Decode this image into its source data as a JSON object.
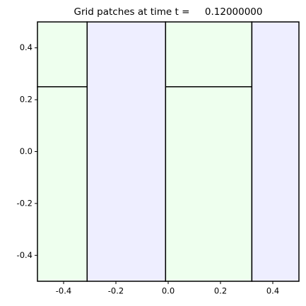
{
  "chart_data": {
    "type": "patches",
    "title": "Grid patches at time t =     0.12000000",
    "xlim": [
      -0.5,
      0.5
    ],
    "ylim": [
      -0.5,
      0.5
    ],
    "xticks": [
      -0.4,
      -0.2,
      {
        "value": 0,
        "label": "0.0"
      },
      0.2,
      0.4
    ],
    "yticks": [
      -0.4,
      -0.2,
      {
        "value": 0,
        "label": "0.0"
      },
      0.2,
      0.4
    ],
    "patches": [
      {
        "x": [
          -0.5,
          -0.31
        ],
        "y": [
          -0.5,
          0.25
        ],
        "color": "#eeffee"
      },
      {
        "x": [
          -0.5,
          -0.31
        ],
        "y": [
          0.25,
          0.5
        ],
        "color": "#eeffee"
      },
      {
        "x": [
          -0.31,
          -0.01
        ],
        "y": [
          -0.5,
          0.5
        ],
        "color": "#eeeeff"
      },
      {
        "x": [
          -0.01,
          0.32
        ],
        "y": [
          -0.5,
          0.25
        ],
        "color": "#eeffee"
      },
      {
        "x": [
          -0.01,
          0.32
        ],
        "y": [
          0.25,
          0.5
        ],
        "color": "#eeffee"
      },
      {
        "x": [
          0.32,
          0.5
        ],
        "y": [
          -0.5,
          0.5
        ],
        "color": "#eeeeff"
      }
    ]
  }
}
